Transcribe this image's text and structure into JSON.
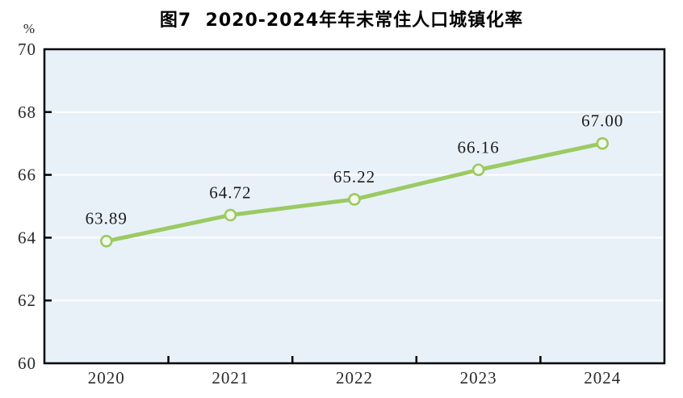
{
  "chart_data": {
    "type": "line",
    "title": "图7  2020-2024年年末常住人口城镇化率",
    "unit_label": "%",
    "categories": [
      "2020",
      "2021",
      "2022",
      "2023",
      "2024"
    ],
    "values": [
      63.89,
      64.72,
      65.22,
      66.16,
      67.0
    ],
    "value_labels": [
      "63.89",
      "64.72",
      "65.22",
      "66.16",
      "67.00"
    ],
    "ylim": [
      60,
      70
    ],
    "yticks": [
      60,
      62,
      64,
      66,
      68,
      70
    ],
    "grid": true,
    "legend": false,
    "colors": {
      "line": "#9bca62",
      "marker_fill": "#f2f9ec",
      "marker_stroke": "#9bca62",
      "plot_background": "#e8f1f8",
      "gridline": "#ffffff",
      "axis_border": "#000000",
      "tick": "#000000",
      "label_text": "#1c1c1c",
      "axis_text": "#2a2a2a",
      "title_text": "#000000"
    }
  }
}
